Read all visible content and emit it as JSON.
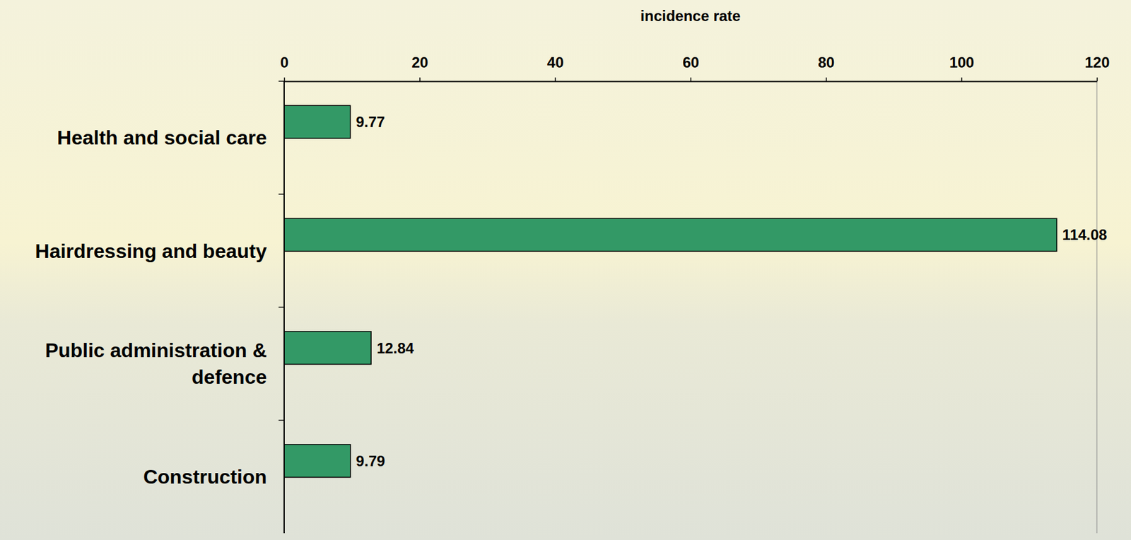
{
  "chart_data": {
    "type": "bar",
    "orientation": "horizontal",
    "xlabel": "incidence rate",
    "categories": [
      "Health and social care",
      "Hairdressing and beauty",
      "Public administration & defence",
      "Construction"
    ],
    "values": [
      9.77,
      114.08,
      12.84,
      9.79
    ],
    "color": "#339966",
    "xlim": [
      0,
      120
    ],
    "xticks": [
      0,
      20,
      40,
      60,
      80,
      100,
      120
    ],
    "grid": false,
    "data_labels": true
  }
}
